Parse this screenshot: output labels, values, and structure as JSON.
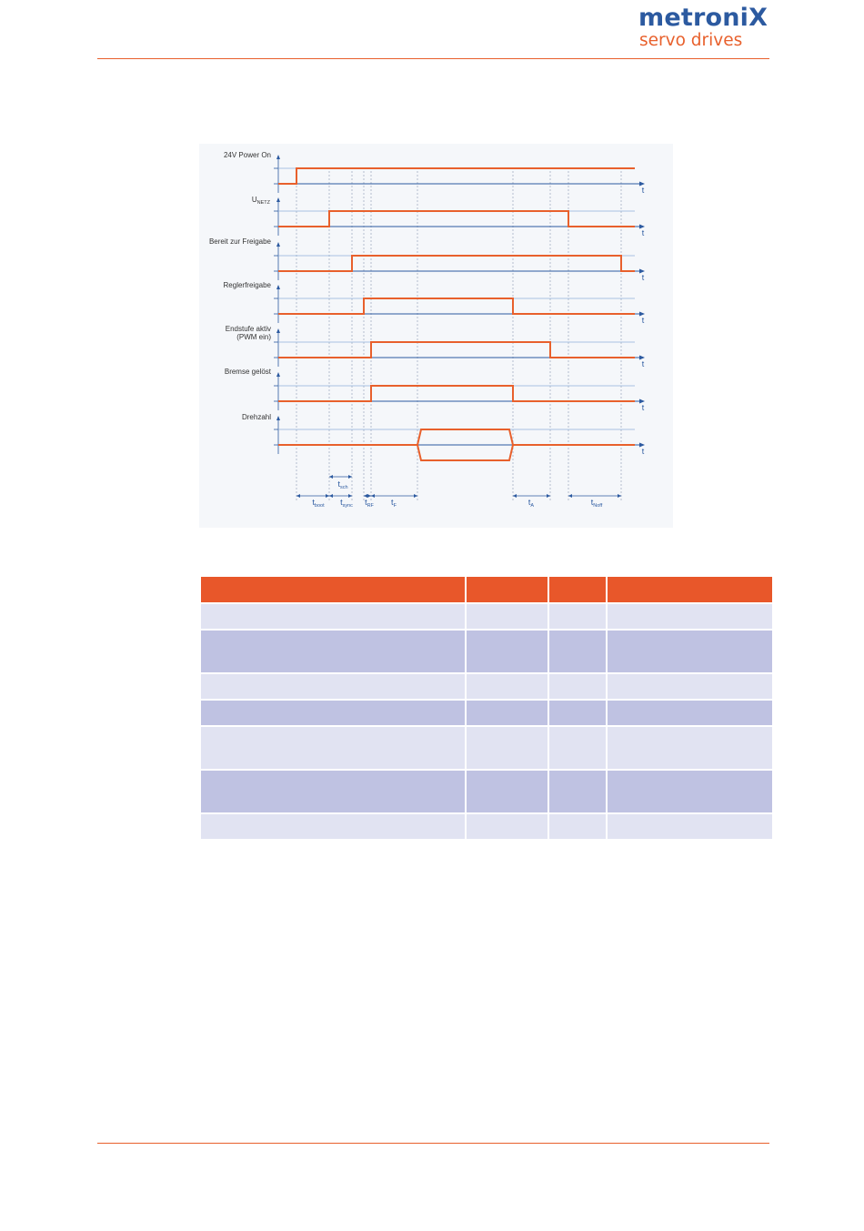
{
  "header": {
    "logo_brand": "metroniX",
    "logo_tagline": "servo drives"
  },
  "timing_diagram": {
    "signals": [
      {
        "label_lines": [
          "24V Power On"
        ]
      },
      {
        "label_main": "U",
        "label_sub": "NETZ"
      },
      {
        "label_lines": [
          "Bereit zur Freigabe"
        ]
      },
      {
        "label_lines": [
          "Reglerfreigabe"
        ]
      },
      {
        "label_lines": [
          "Endstufe aktiv",
          "(PWM ein)"
        ]
      },
      {
        "label_lines": [
          "Bremse gelöst"
        ]
      },
      {
        "label_lines": [
          "Drehzahl"
        ]
      }
    ],
    "axis_label": "t",
    "time_labels": [
      {
        "main": "t",
        "sub": "boot"
      },
      {
        "main": "t",
        "sub": "sync"
      },
      {
        "main": "t",
        "sub": "sch"
      },
      {
        "main": "t",
        "sub": "RF"
      },
      {
        "main": "t",
        "sub": "F"
      },
      {
        "main": "t",
        "sub": "A"
      },
      {
        "main": "t",
        "sub": "Noff"
      }
    ]
  },
  "table": {
    "header": [
      "",
      "",
      "",
      ""
    ],
    "rows": [
      {
        "style": "light",
        "tall": false,
        "cells": [
          "",
          "",
          "",
          ""
        ]
      },
      {
        "style": "dark",
        "tall": true,
        "cells": [
          "",
          "",
          "",
          ""
        ]
      },
      {
        "style": "light",
        "tall": false,
        "cells": [
          "",
          "",
          "",
          ""
        ]
      },
      {
        "style": "dark",
        "tall": false,
        "cells": [
          "",
          "",
          "",
          ""
        ]
      },
      {
        "style": "light",
        "tall": true,
        "cells": [
          "",
          "",
          "",
          ""
        ]
      },
      {
        "style": "dark",
        "tall": true,
        "cells": [
          "",
          "",
          "",
          ""
        ]
      },
      {
        "style": "light",
        "tall": false,
        "cells": [
          "",
          "",
          "",
          ""
        ]
      }
    ]
  },
  "colors": {
    "brand_blue": "#2c5aa0",
    "brand_orange": "#e8602c",
    "signal_line": "#e8602c",
    "axis_line": "#2c5aa0",
    "table_header": "#e8572a",
    "row_light": "#e1e3f2",
    "row_dark": "#bfc2e2"
  }
}
